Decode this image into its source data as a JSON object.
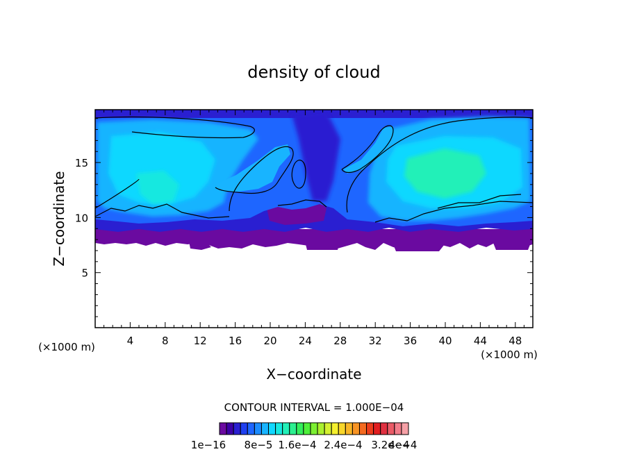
{
  "chart_data": {
    "type": "heatmap",
    "title": "density of cloud",
    "xlabel": "X−coordinate",
    "ylabel": "Z−coordinate",
    "x_unit_left": "(×1000 m)",
    "x_unit_right": "(×1000 m)",
    "xlim": [
      0,
      50
    ],
    "ylim": [
      0,
      19.8
    ],
    "xticks": [
      4,
      8,
      12,
      16,
      20,
      24,
      28,
      32,
      36,
      40,
      44,
      48
    ],
    "yticks": [
      5,
      10,
      15
    ],
    "contour_interval_label": "CONTOUR INTERVAL = 1.000E−04",
    "colorbar": {
      "min": 1e-16,
      "max": 0.0004,
      "levels": 27,
      "tick_labels": [
        "1e−16",
        "8e−5",
        "1.6e−4",
        "2.4e−4",
        "3.2e−4",
        "4e−4"
      ],
      "colors": [
        "#6a0aa0",
        "#3c00a6",
        "#2a1fd1",
        "#1f3ff0",
        "#1e66ff",
        "#1b8cff",
        "#18b4ff",
        "#10d8ff",
        "#16e8e0",
        "#22f0b8",
        "#2cf090",
        "#33ee5c",
        "#4ef03a",
        "#7cf032",
        "#aaf02e",
        "#d4f030",
        "#f5f02e",
        "#f8d62a",
        "#f8b526",
        "#f89424",
        "#f46a20",
        "#ec3c1c",
        "#e21e20",
        "#e03040",
        "#ea5a66",
        "#f27c8a",
        "#f5a0a6"
      ]
    },
    "regions": [
      {
        "name": "cloud_upper",
        "x_range": [
          0,
          50
        ],
        "z_range": [
          10.5,
          19.8
        ],
        "level_index": 4
      },
      {
        "name": "cloud_lower_band",
        "x_range": [
          0,
          50
        ],
        "z_range": [
          9.0,
          10.5
        ],
        "level_index": 2
      },
      {
        "name": "cloud_base",
        "x_range": [
          0,
          50
        ],
        "z_range": [
          7.2,
          9.0
        ],
        "level_index": 0
      }
    ]
  }
}
